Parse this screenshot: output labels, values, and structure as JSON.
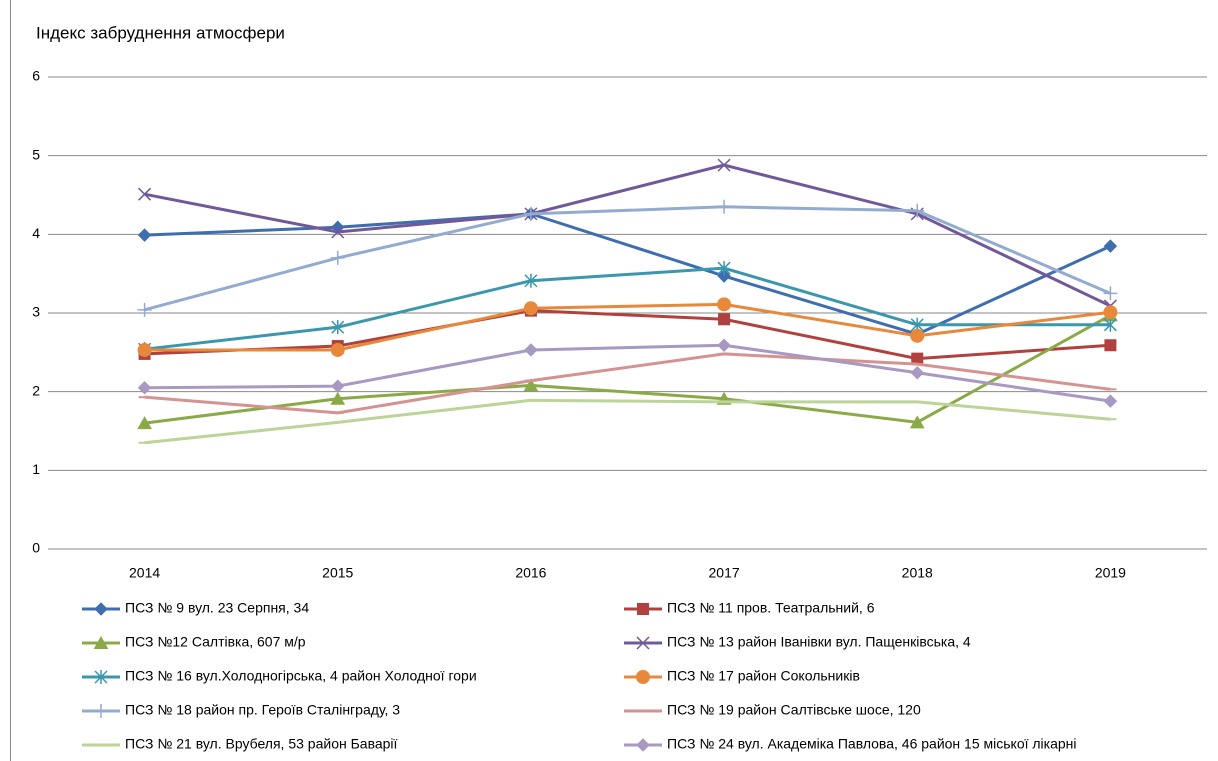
{
  "chart_data": {
    "type": "line",
    "title": "Індекс забруднення атмосфери",
    "categories": [
      "2014",
      "2015",
      "2016",
      "2017",
      "2018",
      "2019"
    ],
    "ylim": [
      0,
      6
    ],
    "yticks": [
      0,
      1,
      2,
      3,
      4,
      5,
      6
    ],
    "grid": true,
    "series": [
      {
        "name": "ПСЗ № 9  вул. 23 Серпня, 34",
        "color": "#3e6eb0",
        "marker": "diamond",
        "values": [
          3.99,
          4.09,
          4.26,
          3.47,
          2.73,
          3.85
        ]
      },
      {
        "name": "ПСЗ № 11  пров. Театральний, 6",
        "color": "#b0413e",
        "marker": "square",
        "values": [
          2.48,
          2.58,
          3.03,
          2.92,
          2.42,
          2.59
        ]
      },
      {
        "name": "ПСЗ №12  Салтівка, 607 м/р",
        "color": "#8aaa48",
        "marker": "triangle",
        "values": [
          1.6,
          1.91,
          2.08,
          1.91,
          1.61,
          2.97
        ]
      },
      {
        "name": "ПСЗ № 13  район Іванівки вул. Пащенківська, 4",
        "color": "#71589a",
        "marker": "x",
        "values": [
          4.51,
          4.03,
          4.26,
          4.88,
          4.26,
          3.09
        ]
      },
      {
        "name": "ПСЗ № 16 вул.Холодногірська, 4 район Холодної гори",
        "color": "#3a97ad",
        "marker": "star",
        "values": [
          2.54,
          2.82,
          3.41,
          3.57,
          2.85,
          2.85
        ]
      },
      {
        "name": "ПСЗ № 17 район Сокольників",
        "color": "#e8883a",
        "marker": "circle",
        "values": [
          2.53,
          2.53,
          3.06,
          3.11,
          2.71,
          3.01
        ]
      },
      {
        "name": "ПСЗ № 18  район пр. Героїв Сталінграду, 3",
        "color": "#93abd0",
        "marker": "plus",
        "values": [
          3.04,
          3.7,
          4.26,
          4.35,
          4.3,
          3.25
        ]
      },
      {
        "name": "ПСЗ № 19  район Салтівське шосе, 120",
        "color": "#d49391",
        "marker": "dash",
        "values": [
          1.93,
          1.73,
          2.14,
          2.48,
          2.35,
          2.03
        ]
      },
      {
        "name": "ПСЗ № 21 вул. Врубеля, 53 район Баварії",
        "color": "#bcd497",
        "marker": "dash",
        "values": [
          1.35,
          1.61,
          1.89,
          1.87,
          1.87,
          1.65
        ]
      },
      {
        "name": "ПСЗ № 24 вул. Академіка Павлова, 46 район 15 міської лікарні",
        "color": "#a898c2",
        "marker": "diamond",
        "values": [
          2.05,
          2.07,
          2.53,
          2.59,
          2.24,
          1.88
        ]
      }
    ]
  }
}
